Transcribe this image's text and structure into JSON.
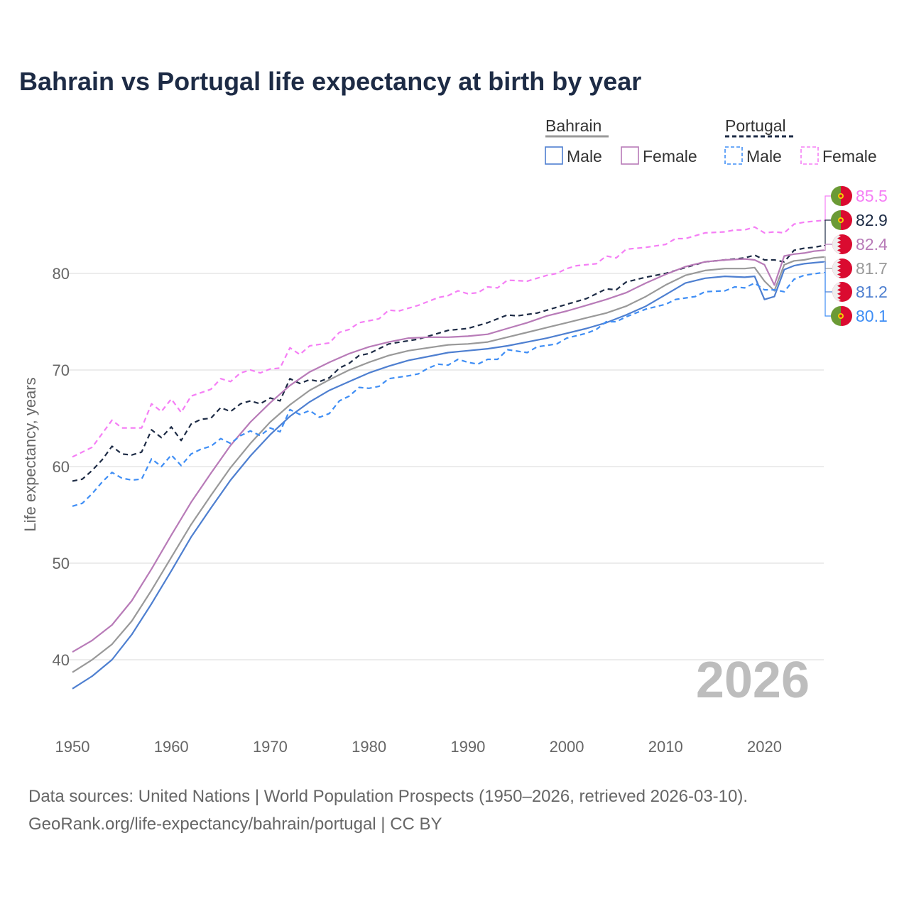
{
  "title": "Bahrain vs Portugal life expectancy at birth by year",
  "legend": {
    "groups": [
      {
        "name": "Bahrain",
        "items": [
          "Male",
          "Female"
        ]
      },
      {
        "name": "Portugal",
        "items": [
          "Male",
          "Female"
        ]
      }
    ]
  },
  "year_watermark": "2026",
  "footer": {
    "line1": "Data sources: United Nations | World Population Prospects (1950–2026, retrieved 2026-03-10).",
    "line2": "GeoRank.org/life-expectancy/bahrain/portugal | CC BY"
  },
  "chart_data": {
    "type": "line",
    "title": "Bahrain vs Portugal life expectancy at birth by year",
    "xlabel": "",
    "ylabel": "Life expectancy, years",
    "xlim": [
      1950,
      2026
    ],
    "ylim": [
      35,
      87
    ],
    "xticks": [
      1950,
      1960,
      1970,
      1980,
      1990,
      2000,
      2010,
      2020
    ],
    "yticks": [
      40,
      50,
      60,
      70,
      80
    ],
    "grid": true,
    "legend_position": "top-right",
    "series": [
      {
        "name": "Portugal Female",
        "country": "Portugal",
        "flag": "portugal",
        "dashed": true,
        "color": "#f57ef5",
        "end_label": "85.5",
        "x": [
          1950,
          1952,
          1954,
          1955,
          1957,
          1958,
          1959,
          1960,
          1961,
          1962,
          1964,
          1965,
          1966,
          1967,
          1968,
          1969,
          1970,
          1971,
          1972,
          1973,
          1974,
          1976,
          1977,
          1978,
          1979,
          1981,
          1982,
          1983,
          1985,
          1987,
          1988,
          1989,
          1990,
          1991,
          1992,
          1993,
          1994,
          1996,
          1998,
          1999,
          2000,
          2001,
          2003,
          2004,
          2005,
          2006,
          2008,
          2010,
          2011,
          2012,
          2014,
          2016,
          2017,
          2018,
          2019,
          2020,
          2021,
          2022,
          2023,
          2024,
          2026
        ],
        "y": [
          61.0,
          62.0,
          64.8,
          64.0,
          64.0,
          66.5,
          65.7,
          67.0,
          65.6,
          67.3,
          68.0,
          69.1,
          68.8,
          69.7,
          70.0,
          69.7,
          70.1,
          70.2,
          72.3,
          71.6,
          72.5,
          72.8,
          73.9,
          74.2,
          74.9,
          75.3,
          76.2,
          76.1,
          76.7,
          77.5,
          77.7,
          78.2,
          77.9,
          78.0,
          78.6,
          78.5,
          79.3,
          79.2,
          79.8,
          80.0,
          80.5,
          80.8,
          81.0,
          81.8,
          81.6,
          82.5,
          82.7,
          83.0,
          83.6,
          83.6,
          84.2,
          84.3,
          84.5,
          84.5,
          84.8,
          84.2,
          84.3,
          84.2,
          85.1,
          85.3,
          85.5
        ]
      },
      {
        "name": "Portugal",
        "country": "Portugal",
        "flag": "portugal",
        "dashed": true,
        "color": "#1d2b45",
        "end_label": "82.9",
        "x": [
          1950,
          1951,
          1952,
          1953,
          1954,
          1955,
          1956,
          1957,
          1958,
          1959,
          1960,
          1961,
          1962,
          1963,
          1964,
          1965,
          1966,
          1967,
          1968,
          1969,
          1970,
          1971,
          1972,
          1973,
          1974,
          1975,
          1976,
          1977,
          1978,
          1979,
          1980,
          1982,
          1985,
          1988,
          1990,
          1992,
          1994,
          1995,
          1997,
          2000,
          2002,
          2004,
          2005,
          2006,
          2008,
          2010,
          2012,
          2014,
          2016,
          2018,
          2019,
          2020,
          2021,
          2022,
          2023,
          2024,
          2025,
          2026
        ],
        "y": [
          58.5,
          58.7,
          59.6,
          60.7,
          62.1,
          61.3,
          61.2,
          61.5,
          63.8,
          63.0,
          64.1,
          62.7,
          64.4,
          64.9,
          65.0,
          66.1,
          65.7,
          66.5,
          66.8,
          66.5,
          67.1,
          66.8,
          69.1,
          68.6,
          69.0,
          68.8,
          69.2,
          70.2,
          70.7,
          71.5,
          71.7,
          72.7,
          73.2,
          74.1,
          74.3,
          74.9,
          75.7,
          75.6,
          75.9,
          76.8,
          77.4,
          78.4,
          78.3,
          79.1,
          79.6,
          80.0,
          80.6,
          81.2,
          81.4,
          81.6,
          81.9,
          81.4,
          81.4,
          81.2,
          82.4,
          82.6,
          82.7,
          82.9
        ]
      },
      {
        "name": "Bahrain Female",
        "country": "Bahrain",
        "flag": "bahrain",
        "dashed": false,
        "color": "#b87bb8",
        "end_label": "82.4",
        "x": [
          1950,
          1952,
          1954,
          1956,
          1958,
          1960,
          1962,
          1964,
          1966,
          1968,
          1970,
          1972,
          1974,
          1976,
          1978,
          1980,
          1982,
          1984,
          1986,
          1988,
          1990,
          1992,
          1994,
          1996,
          1998,
          2000,
          2002,
          2004,
          2006,
          2008,
          2010,
          2012,
          2014,
          2016,
          2018,
          2019,
          2020,
          2021,
          2022,
          2023,
          2024,
          2025,
          2026
        ],
        "y": [
          40.8,
          42.0,
          43.6,
          46.1,
          49.4,
          52.9,
          56.3,
          59.3,
          62.2,
          64.6,
          66.6,
          68.4,
          69.8,
          70.8,
          71.7,
          72.4,
          72.9,
          73.3,
          73.4,
          73.4,
          73.5,
          73.7,
          74.3,
          74.9,
          75.6,
          76.1,
          76.7,
          77.3,
          78.0,
          79.0,
          79.9,
          80.7,
          81.2,
          81.4,
          81.5,
          81.4,
          80.9,
          78.8,
          81.8,
          82.0,
          82.1,
          82.3,
          82.4
        ]
      },
      {
        "name": "Bahrain",
        "country": "Bahrain",
        "flag": "bahrain",
        "dashed": false,
        "color": "#999999",
        "end_label": "81.7",
        "x": [
          1950,
          1952,
          1954,
          1956,
          1958,
          1960,
          1962,
          1964,
          1966,
          1968,
          1970,
          1972,
          1974,
          1976,
          1978,
          1980,
          1982,
          1984,
          1986,
          1988,
          1990,
          1992,
          1994,
          1996,
          1998,
          2000,
          2002,
          2004,
          2006,
          2008,
          2010,
          2012,
          2014,
          2016,
          2018,
          2019,
          2020,
          2021,
          2022,
          2023,
          2024,
          2025,
          2026
        ],
        "y": [
          38.7,
          40.0,
          41.6,
          44.0,
          47.2,
          50.6,
          54.0,
          57.0,
          59.9,
          62.4,
          64.6,
          66.4,
          67.9,
          69.0,
          70.0,
          70.8,
          71.5,
          72.0,
          72.3,
          72.6,
          72.7,
          72.9,
          73.4,
          73.9,
          74.4,
          74.9,
          75.4,
          75.9,
          76.6,
          77.6,
          78.8,
          79.8,
          80.3,
          80.5,
          80.5,
          80.6,
          79.2,
          78.2,
          80.9,
          81.3,
          81.4,
          81.6,
          81.7
        ]
      },
      {
        "name": "Bahrain Male",
        "country": "Bahrain",
        "flag": "bahrain",
        "dashed": false,
        "color": "#4e7fd0",
        "end_label": "81.2",
        "x": [
          1950,
          1952,
          1954,
          1956,
          1958,
          1960,
          1962,
          1964,
          1966,
          1968,
          1970,
          1972,
          1974,
          1976,
          1978,
          1980,
          1982,
          1984,
          1986,
          1988,
          1990,
          1992,
          1994,
          1996,
          1998,
          2000,
          2002,
          2004,
          2006,
          2008,
          2010,
          2012,
          2014,
          2016,
          2018,
          2019,
          2020,
          2021,
          2022,
          2023,
          2024,
          2025,
          2026
        ],
        "y": [
          37.0,
          38.3,
          40.0,
          42.6,
          45.8,
          49.2,
          52.7,
          55.7,
          58.6,
          61.1,
          63.3,
          65.2,
          66.7,
          67.9,
          68.8,
          69.7,
          70.4,
          71.0,
          71.4,
          71.8,
          72.0,
          72.2,
          72.5,
          72.9,
          73.3,
          73.8,
          74.3,
          74.9,
          75.7,
          76.6,
          77.8,
          79.0,
          79.5,
          79.7,
          79.6,
          79.7,
          77.3,
          77.6,
          80.4,
          80.8,
          81.0,
          81.1,
          81.2
        ]
      },
      {
        "name": "Portugal Male",
        "country": "Portugal",
        "flag": "portugal",
        "dashed": true,
        "color": "#3f8ef5",
        "end_label": "80.1",
        "x": [
          1950,
          1951,
          1952,
          1953,
          1954,
          1955,
          1956,
          1957,
          1958,
          1959,
          1960,
          1961,
          1962,
          1963,
          1964,
          1965,
          1966,
          1967,
          1968,
          1969,
          1970,
          1971,
          1972,
          1973,
          1974,
          1975,
          1976,
          1977,
          1978,
          1979,
          1980,
          1981,
          1982,
          1984,
          1985,
          1986,
          1987,
          1988,
          1989,
          1990,
          1991,
          1992,
          1993,
          1994,
          1996,
          1997,
          1999,
          2000,
          2002,
          2003,
          2004,
          2005,
          2006,
          2008,
          2010,
          2011,
          2013,
          2014,
          2016,
          2017,
          2018,
          2019,
          2020,
          2021,
          2022,
          2023,
          2024,
          2026
        ],
        "y": [
          55.9,
          56.2,
          57.2,
          58.4,
          59.4,
          58.8,
          58.6,
          58.7,
          60.8,
          60.0,
          61.2,
          60.1,
          61.3,
          61.8,
          62.1,
          62.9,
          62.4,
          63.2,
          63.7,
          63.2,
          64.0,
          63.6,
          65.9,
          65.4,
          65.8,
          65.1,
          65.5,
          66.8,
          67.3,
          68.2,
          68.1,
          68.3,
          69.1,
          69.4,
          69.6,
          70.2,
          70.6,
          70.5,
          71.1,
          70.8,
          70.6,
          71.1,
          71.1,
          72.1,
          71.8,
          72.4,
          72.7,
          73.3,
          73.8,
          74.2,
          75.0,
          75.0,
          75.5,
          76.3,
          76.8,
          77.3,
          77.6,
          78.1,
          78.2,
          78.6,
          78.5,
          79.0,
          78.3,
          78.3,
          78.1,
          79.4,
          79.8,
          80.1
        ]
      }
    ]
  }
}
